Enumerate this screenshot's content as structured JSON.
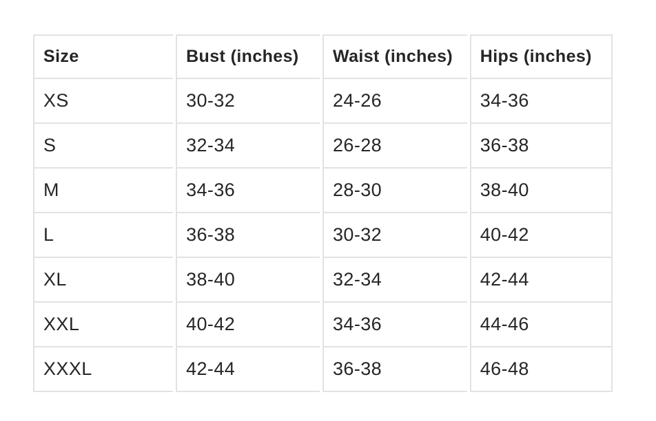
{
  "table": {
    "columns": [
      {
        "key": "size",
        "label": "Size"
      },
      {
        "key": "bust",
        "label": "Bust (inches)"
      },
      {
        "key": "waist",
        "label": "Waist (inches)"
      },
      {
        "key": "hips",
        "label": "Hips (inches)"
      }
    ],
    "rows": [
      {
        "size": "XS",
        "bust": "30-32",
        "waist": "24-26",
        "hips": "34-36"
      },
      {
        "size": "S",
        "bust": "32-34",
        "waist": "26-28",
        "hips": "36-38"
      },
      {
        "size": "M",
        "bust": "34-36",
        "waist": "28-30",
        "hips": "38-40"
      },
      {
        "size": "L",
        "bust": "36-38",
        "waist": "30-32",
        "hips": "40-42"
      },
      {
        "size": "XL",
        "bust": "38-40",
        "waist": "32-34",
        "hips": "42-44"
      },
      {
        "size": "XXL",
        "bust": "40-42",
        "waist": "34-36",
        "hips": "44-46"
      },
      {
        "size": "XXXL",
        "bust": "42-44",
        "waist": "36-38",
        "hips": "46-48"
      }
    ],
    "column_widths_pct": [
      24.5,
      25.2,
      25.3,
      25.0
    ]
  },
  "colors": {
    "background": "#ffffff",
    "border": "#e2e2e2",
    "text": "#262626"
  }
}
